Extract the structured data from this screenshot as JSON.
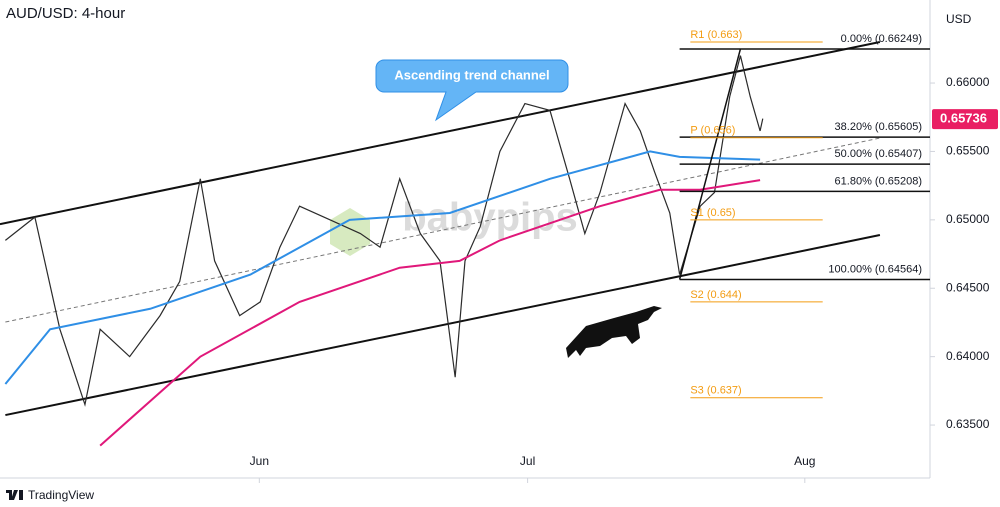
{
  "chart_data": {
    "type": "line",
    "title": "AUD/USD: 4-hour",
    "currency": "USD",
    "callout": "Ascending trend channel",
    "watermark": "babypips",
    "brand": "TradingView",
    "last_price": {
      "value": 0.65736,
      "label": "0.65736",
      "color": "#e91e63"
    },
    "xlim": [
      2,
      106
    ],
    "xticks": [
      {
        "value": 31,
        "label": "Jun"
      },
      {
        "value": 61,
        "label": "Jul"
      },
      {
        "value": 92,
        "label": "Aug"
      }
    ],
    "ylim": [
      0.63113,
      0.66607
    ],
    "yticks": [
      {
        "value": 0.66,
        "label": "0.66000"
      },
      {
        "value": 0.655,
        "label": "0.65500"
      },
      {
        "value": 0.65,
        "label": "0.65000"
      },
      {
        "value": 0.645,
        "label": "0.64500"
      },
      {
        "value": 0.64,
        "label": "0.64000"
      },
      {
        "value": 0.635,
        "label": "0.63500"
      }
    ],
    "series": [
      {
        "name": "Price",
        "color": "#2b2b2b",
        "x": [
          2.6,
          5.9,
          8.7,
          11.5,
          13.2,
          16.5,
          19.9,
          22.1,
          24.4,
          26.0,
          28.8,
          31.1,
          33.3,
          35.5,
          38.9,
          42.3,
          44.5,
          46.7,
          49.0,
          51.2,
          52.9,
          54.0,
          55.7,
          57.9,
          60.7,
          63.5,
          65.7,
          67.4,
          69.1,
          71.9,
          73.6,
          75.2,
          76.9,
          78.0,
          80.3,
          81.9,
          83.6,
          84.8,
          85.9,
          87.0,
          87.3
        ],
        "values": [
          0.6485,
          0.6502,
          0.642,
          0.6365,
          0.642,
          0.64,
          0.643,
          0.6455,
          0.653,
          0.647,
          0.643,
          0.644,
          0.648,
          0.651,
          0.65,
          0.649,
          0.648,
          0.653,
          0.649,
          0.647,
          0.6385,
          0.647,
          0.6495,
          0.655,
          0.6585,
          0.658,
          0.653,
          0.649,
          0.652,
          0.6585,
          0.6565,
          0.6535,
          0.6505,
          0.646,
          0.651,
          0.652,
          0.659,
          0.662,
          0.659,
          0.6565,
          0.6574
        ]
      },
      {
        "name": "MA fast",
        "color": "#2f8fe6",
        "x": [
          2.6,
          7.6,
          18.8,
          30.0,
          41.1,
          52.3,
          63.5,
          74.7,
          78.0,
          87.0
        ],
        "values": [
          0.638,
          0.642,
          0.6435,
          0.646,
          0.65,
          0.6505,
          0.653,
          0.655,
          0.6546,
          0.6544
        ]
      },
      {
        "name": "MA slow",
        "color": "#e0187a",
        "x": [
          13.2,
          24.4,
          35.5,
          46.7,
          53.4,
          57.9,
          69.1,
          75.8,
          80.3,
          87.0
        ],
        "values": [
          0.6335,
          0.64,
          0.644,
          0.6465,
          0.647,
          0.6485,
          0.651,
          0.6522,
          0.6522,
          0.6529
        ]
      }
    ],
    "trend_lines": [
      {
        "x": [
          2,
          100.4
        ],
        "values": [
          0.64969,
          0.663
        ],
        "style": "solid"
      },
      {
        "x": [
          2.6,
          100.4
        ],
        "values": [
          0.63573,
          0.64889
        ],
        "style": "solid"
      },
      {
        "x": [
          2.6,
          100.4
        ],
        "values": [
          0.64253,
          0.65598
        ],
        "style": "dashed"
      }
    ],
    "fib": {
      "start": 78.0,
      "color": "#111111",
      "levels": [
        {
          "value": 0.66249,
          "label": "0.00% (0.66249)"
        },
        {
          "value": 0.65605,
          "label": "38.20% (0.65605)"
        },
        {
          "value": 0.65407,
          "label": "50.00% (0.65407)"
        },
        {
          "value": 0.65208,
          "label": "61.80% (0.65208)"
        },
        {
          "value": 0.64564,
          "label": "100.00% (0.64564)"
        }
      ],
      "swing_high_x": 84.8
    },
    "pivots": {
      "color": "#f39c12",
      "start": 79.2,
      "end": 94.0,
      "levels": [
        {
          "value": 0.663,
          "label": "R1 (0.663)"
        },
        {
          "value": 0.656,
          "label": "P (0.656)"
        },
        {
          "value": 0.65,
          "label": "S1 (0.65)"
        },
        {
          "value": 0.644,
          "label": "S2 (0.644)"
        },
        {
          "value": 0.637,
          "label": "S3 (0.637)"
        }
      ]
    }
  }
}
